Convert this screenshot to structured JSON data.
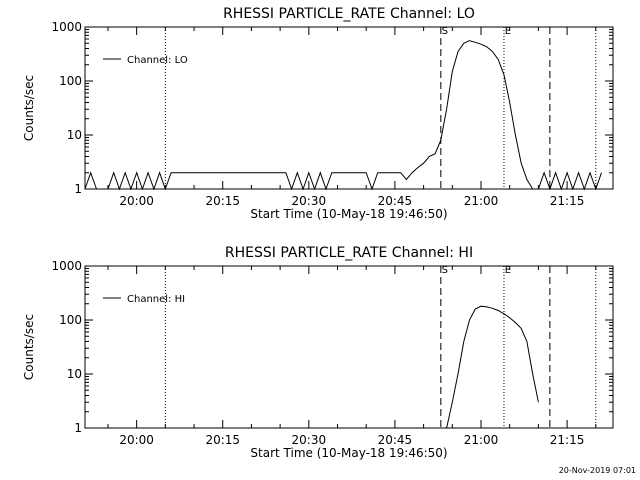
{
  "timestamp": "20-Nov-2019 07:01",
  "chart_data": [
    {
      "type": "line",
      "title": "RHESSI PARTICLE_RATE Channel: LO",
      "xlabel": "Start Time (10-May-18 19:46:50)",
      "ylabel": "Counts/sec",
      "xlim": [
        "19:51",
        "21:23"
      ],
      "ylim": [
        1,
        1000
      ],
      "yscale": "log",
      "xticks": [
        "20:00",
        "20:15",
        "20:30",
        "20:45",
        "21:00",
        "21:15"
      ],
      "yticks": [
        "1",
        "10",
        "100",
        "1000"
      ],
      "legend": {
        "position": "top-left",
        "label": "Channel: LO"
      },
      "vertical_lines": [
        {
          "time": "20:05",
          "style": "dotted"
        },
        {
          "time": "20:53",
          "style": "dashed",
          "label": "S"
        },
        {
          "time": "21:04",
          "style": "dotted",
          "label": "E"
        },
        {
          "time": "21:12",
          "style": "dashed"
        },
        {
          "time": "21:20",
          "style": "dotted"
        }
      ],
      "series": [
        {
          "x": [
            "19:51",
            "19:52",
            "19:53",
            "19:55",
            "19:56",
            "19:57",
            "19:58",
            "19:59",
            "20:00",
            "20:01",
            "20:02",
            "20:03",
            "20:04",
            "20:05",
            "20:06",
            "20:07",
            "20:08",
            "20:10",
            "20:12",
            "20:14",
            "20:16",
            "20:18",
            "20:20",
            "20:22",
            "20:24",
            "20:26",
            "20:27",
            "20:28",
            "20:29",
            "20:30",
            "20:31",
            "20:32",
            "20:33",
            "20:34",
            "20:36",
            "20:38",
            "20:40",
            "20:41",
            "20:42",
            "20:44",
            "20:46",
            "20:47",
            "20:48",
            "20:49",
            "20:50",
            "20:51",
            "20:52",
            "20:53",
            "20:54",
            "20:55",
            "20:56",
            "20:57",
            "20:58",
            "20:59",
            "21:00",
            "21:01",
            "21:02",
            "21:03",
            "21:04",
            "21:05",
            "21:06",
            "21:07",
            "21:08",
            "21:09",
            "21:10",
            "21:11",
            "21:12",
            "21:13",
            "21:14",
            "21:15",
            "21:16",
            "21:17",
            "21:18",
            "21:19",
            "21:20",
            "21:21"
          ],
          "y": [
            1,
            2,
            1,
            1,
            2,
            1,
            2,
            1,
            2,
            1,
            2,
            1,
            2,
            1,
            2,
            2,
            2,
            2,
            2,
            2,
            2,
            2,
            2,
            2,
            2,
            2,
            1,
            2,
            1,
            2,
            1,
            2,
            1,
            2,
            2,
            2,
            2,
            1,
            2,
            2,
            2,
            1.5,
            2,
            2.5,
            3,
            4,
            4.5,
            8,
            30,
            150,
            350,
            500,
            560,
            520,
            480,
            430,
            350,
            250,
            130,
            40,
            10,
            3,
            1.5,
            1,
            1,
            2,
            1,
            2,
            1,
            2,
            1,
            2,
            1,
            2,
            1,
            2
          ]
        }
      ]
    },
    {
      "type": "line",
      "title": "RHESSI PARTICLE_RATE Channel: HI",
      "xlabel": "Start Time (10-May-18 19:46:50)",
      "ylabel": "Counts/sec",
      "xlim": [
        "19:51",
        "21:23"
      ],
      "ylim": [
        1,
        1000
      ],
      "yscale": "log",
      "xticks": [
        "20:00",
        "20:15",
        "20:30",
        "20:45",
        "21:00",
        "21:15"
      ],
      "yticks": [
        "1",
        "10",
        "100",
        "1000"
      ],
      "legend": {
        "position": "top-left",
        "label": "Channel: HI"
      },
      "vertical_lines": [
        {
          "time": "20:05",
          "style": "dotted"
        },
        {
          "time": "20:53",
          "style": "dashed",
          "label": "S"
        },
        {
          "time": "21:04",
          "style": "dotted",
          "label": "E"
        },
        {
          "time": "21:12",
          "style": "dashed"
        },
        {
          "time": "21:20",
          "style": "dotted"
        }
      ],
      "series": [
        {
          "x": [
            "20:54",
            "20:55",
            "20:56",
            "20:57",
            "20:58",
            "20:59",
            "21:00",
            "21:01",
            "21:02",
            "21:03",
            "21:04",
            "21:05",
            "21:06",
            "21:07",
            "21:08",
            "21:09",
            "21:10"
          ],
          "y": [
            1,
            3,
            10,
            40,
            100,
            160,
            180,
            175,
            165,
            150,
            130,
            110,
            90,
            70,
            40,
            10,
            3
          ]
        }
      ]
    }
  ]
}
